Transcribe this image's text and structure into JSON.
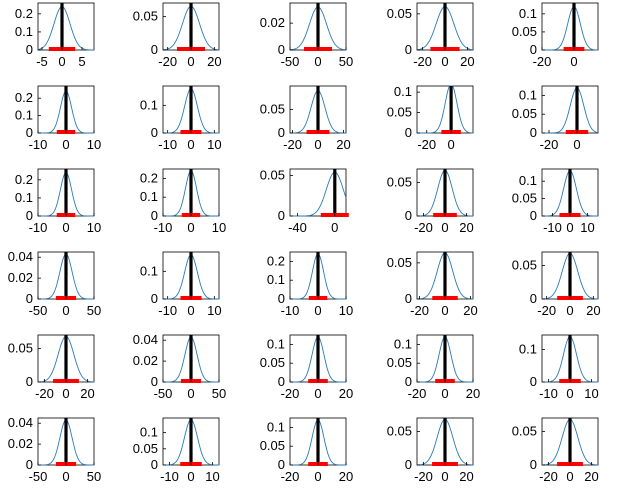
{
  "colors": {
    "curve": "#2a7ab8",
    "bar": "#ff0000",
    "mean_line": "#000000",
    "axes": "#000000"
  },
  "chart_data": [
    {
      "type": "line",
      "series": [
        {
          "values": [
            0.0,
            0.24,
            0.0
          ]
        }
      ],
      "ylim": [
        0,
        0.26
      ],
      "xlim": [
        -6,
        8
      ],
      "yticks": [
        0,
        0.1,
        0.2
      ],
      "ytick_labels": [
        "0",
        "0.1",
        "0.2"
      ],
      "xticks": [
        -5,
        0,
        5
      ],
      "xtick_labels": [
        "-5",
        "0",
        "5"
      ],
      "mean": 0,
      "interval": [
        -3.3,
        3.3
      ]
    },
    {
      "type": "line",
      "series": [
        {
          "values": [
            0.0,
            0.065,
            0.0
          ]
        }
      ],
      "ylim": [
        0,
        0.07
      ],
      "xlim": [
        -24,
        24
      ],
      "yticks": [
        0,
        0.05
      ],
      "ytick_labels": [
        "0",
        "0.05"
      ],
      "xticks": [
        -20,
        0,
        20
      ],
      "xtick_labels": [
        "-20",
        "0",
        "20"
      ],
      "mean": 0,
      "interval": [
        -12,
        12
      ]
    },
    {
      "type": "line",
      "series": [
        {
          "values": [
            0.0,
            0.032,
            0.0
          ]
        }
      ],
      "ylim": [
        0,
        0.035
      ],
      "xlim": [
        -50,
        50
      ],
      "yticks": [
        0,
        0.02
      ],
      "ytick_labels": [
        "0",
        "0.02"
      ],
      "xticks": [
        -50,
        0,
        50
      ],
      "xtick_labels": [
        "-50",
        "0",
        "50"
      ],
      "mean": 0,
      "interval": [
        -25,
        25
      ]
    },
    {
      "type": "line",
      "series": [
        {
          "values": [
            0.0,
            0.06,
            0.0
          ]
        }
      ],
      "ylim": [
        0,
        0.065
      ],
      "xlim": [
        -25,
        25
      ],
      "yticks": [
        0,
        0.05
      ],
      "ytick_labels": [
        "0",
        "0.05"
      ],
      "xticks": [
        -20,
        0,
        20
      ],
      "xtick_labels": [
        "-20",
        "0",
        "20"
      ],
      "mean": 0,
      "interval": [
        -13,
        13
      ]
    },
    {
      "type": "line",
      "series": [
        {
          "values": [
            0.0,
            0.12,
            0.0
          ]
        }
      ],
      "ylim": [
        0,
        0.13
      ],
      "xlim": [
        -20,
        15
      ],
      "yticks": [
        0,
        0.05,
        0.1
      ],
      "ytick_labels": [
        "0",
        "0.05",
        "0.1"
      ],
      "xticks": [
        -20,
        0
      ],
      "xtick_labels": [
        "-20",
        "0"
      ],
      "mean": 0,
      "interval": [
        -6.5,
        6.5
      ]
    },
    {
      "type": "line",
      "series": [
        {
          "values": [
            0.0,
            0.24,
            0.0
          ]
        }
      ],
      "ylim": [
        0,
        0.27
      ],
      "xlim": [
        -10,
        10
      ],
      "yticks": [
        0,
        0.1,
        0.2
      ],
      "ytick_labels": [
        "0",
        "0.1",
        "0.2"
      ],
      "xticks": [
        -10,
        0,
        10
      ],
      "xtick_labels": [
        "-10",
        "0",
        "10"
      ],
      "mean": 0,
      "interval": [
        -3.3,
        3.3
      ]
    },
    {
      "type": "line",
      "series": [
        {
          "values": [
            0.0,
            0.16,
            0.0
          ]
        }
      ],
      "ylim": [
        0,
        0.17
      ],
      "xlim": [
        -12,
        12
      ],
      "yticks": [
        0,
        0.1
      ],
      "ytick_labels": [
        "0",
        "0.1"
      ],
      "xticks": [
        -10,
        0,
        10
      ],
      "xtick_labels": [
        "-10",
        "0",
        "10"
      ],
      "mean": 0,
      "interval": [
        -4.5,
        4.5
      ]
    },
    {
      "type": "line",
      "series": [
        {
          "values": [
            0.0,
            0.09,
            0.0
          ]
        }
      ],
      "ylim": [
        0,
        0.1
      ],
      "xlim": [
        -22,
        22
      ],
      "yticks": [
        0,
        0.05
      ],
      "ytick_labels": [
        "0",
        "0.05"
      ],
      "xticks": [
        -20,
        0,
        20
      ],
      "xtick_labels": [
        "-20",
        "0",
        "20"
      ],
      "mean": 0,
      "interval": [
        -9,
        9
      ]
    },
    {
      "type": "line",
      "series": [
        {
          "values": [
            0.0,
            0.12,
            0.0
          ]
        }
      ],
      "ylim": [
        0,
        0.115
      ],
      "xlim": [
        -28,
        18
      ],
      "yticks": [
        0,
        0.05,
        0.1
      ],
      "ytick_labels": [
        "0",
        "0.05",
        "0.1"
      ],
      "xticks": [
        -20,
        0
      ],
      "xtick_labels": [
        "-20",
        "0"
      ],
      "mean": 0,
      "interval": [
        -8,
        8
      ]
    },
    {
      "type": "line",
      "series": [
        {
          "values": [
            0.0,
            0.12,
            0.0
          ]
        }
      ],
      "ylim": [
        0,
        0.125
      ],
      "xlim": [
        -25,
        15
      ],
      "yticks": [
        0,
        0.05,
        0.1
      ],
      "ytick_labels": [
        "0",
        "0.05",
        "0.1"
      ],
      "xticks": [
        -20,
        0
      ],
      "xtick_labels": [
        "-20",
        "0"
      ],
      "mean": 0,
      "interval": [
        -8,
        8
      ]
    },
    {
      "type": "line",
      "series": [
        {
          "values": [
            0.0,
            0.24,
            0.0
          ]
        }
      ],
      "ylim": [
        0,
        0.26
      ],
      "xlim": [
        -10,
        10
      ],
      "yticks": [
        0,
        0.1,
        0.2
      ],
      "ytick_labels": [
        "0",
        "0.1",
        "0.2"
      ],
      "xticks": [
        -10,
        0,
        10
      ],
      "xtick_labels": [
        "-10",
        "0",
        "10"
      ],
      "mean": 0,
      "interval": [
        -3.3,
        3.3
      ]
    },
    {
      "type": "line",
      "series": [
        {
          "values": [
            0.0,
            0.24,
            0.0
          ]
        }
      ],
      "ylim": [
        0,
        0.25
      ],
      "xlim": [
        -10,
        10
      ],
      "yticks": [
        0,
        0.1,
        0.2
      ],
      "ytick_labels": [
        "0",
        "0.1",
        "0.2"
      ],
      "xticks": [
        -10,
        0,
        10
      ],
      "xtick_labels": [
        "-10",
        "0",
        "10"
      ],
      "mean": 0,
      "interval": [
        -3.3,
        3.3
      ]
    },
    {
      "type": "line",
      "series": [
        {
          "values": [
            0.0,
            0.054,
            0.0
          ]
        }
      ],
      "ylim": [
        0,
        0.058
      ],
      "xlim": [
        -48,
        12
      ],
      "yticks": [
        0,
        0.05
      ],
      "ytick_labels": [
        "0",
        "0.05"
      ],
      "xticks": [
        -40,
        0
      ],
      "xtick_labels": [
        "-40",
        "0"
      ],
      "mean": 0,
      "interval": [
        -15,
        15
      ]
    },
    {
      "type": "line",
      "series": [
        {
          "values": [
            0.0,
            0.068,
            0.0
          ]
        }
      ],
      "ylim": [
        0,
        0.07
      ],
      "xlim": [
        -26,
        26
      ],
      "yticks": [
        0,
        0.05
      ],
      "ytick_labels": [
        "0",
        "0.05"
      ],
      "xticks": [
        -20,
        0,
        20
      ],
      "xtick_labels": [
        "-20",
        "0",
        "20"
      ],
      "mean": 0,
      "interval": [
        -11,
        11
      ]
    },
    {
      "type": "line",
      "series": [
        {
          "values": [
            0.0,
            0.13,
            0.0
          ]
        }
      ],
      "ylim": [
        0,
        0.135
      ],
      "xlim": [
        -16,
        16
      ],
      "yticks": [
        0,
        0.05,
        0.1
      ],
      "ytick_labels": [
        "0",
        "0.05",
        "0.1"
      ],
      "xticks": [
        -10,
        0,
        10
      ],
      "xtick_labels": [
        "-10",
        "0",
        "10"
      ],
      "mean": 0,
      "interval": [
        -6,
        6
      ]
    },
    {
      "type": "line",
      "series": [
        {
          "values": [
            0.0,
            0.043,
            0.0
          ]
        }
      ],
      "ylim": [
        0,
        0.045
      ],
      "xlim": [
        -50,
        50
      ],
      "yticks": [
        0,
        0.02,
        0.04
      ],
      "ytick_labels": [
        "0",
        "0.02",
        "0.04"
      ],
      "xticks": [
        -50,
        0,
        50
      ],
      "xtick_labels": [
        "-50",
        "0",
        "50"
      ],
      "mean": 0,
      "interval": [
        -18,
        18
      ]
    },
    {
      "type": "line",
      "series": [
        {
          "values": [
            0.0,
            0.16,
            0.0
          ]
        }
      ],
      "ylim": [
        0,
        0.17
      ],
      "xlim": [
        -12,
        12
      ],
      "yticks": [
        0,
        0.1
      ],
      "ytick_labels": [
        "0",
        "0.1"
      ],
      "xticks": [
        -10,
        0,
        10
      ],
      "xtick_labels": [
        "-10",
        "0",
        "10"
      ],
      "mean": 0,
      "interval": [
        -4.5,
        4.5
      ]
    },
    {
      "type": "line",
      "series": [
        {
          "values": [
            0.0,
            0.24,
            0.0
          ]
        }
      ],
      "ylim": [
        0,
        0.25
      ],
      "xlim": [
        -10,
        10
      ],
      "yticks": [
        0,
        0.1,
        0.2
      ],
      "ytick_labels": [
        "0",
        "0.1",
        "0.2"
      ],
      "xticks": [
        -10,
        0,
        10
      ],
      "xtick_labels": [
        "-10",
        "0",
        "10"
      ],
      "mean": 0,
      "interval": [
        -3.3,
        3.3
      ]
    },
    {
      "type": "line",
      "series": [
        {
          "values": [
            0.0,
            0.064,
            0.0
          ]
        }
      ],
      "ylim": [
        0,
        0.065
      ],
      "xlim": [
        -22,
        22
      ],
      "yticks": [
        0,
        0.05
      ],
      "ytick_labels": [
        "0",
        "0.05"
      ],
      "xticks": [
        -20,
        0,
        20
      ],
      "xtick_labels": [
        "-20",
        "0",
        "20"
      ],
      "mean": 0,
      "interval": [
        -10,
        10
      ]
    },
    {
      "type": "line",
      "series": [
        {
          "values": [
            0.0,
            0.068,
            0.0
          ]
        }
      ],
      "ylim": [
        0,
        0.07
      ],
      "xlim": [
        -24,
        24
      ],
      "yticks": [
        0,
        0.05
      ],
      "ytick_labels": [
        "0",
        "0.05"
      ],
      "xticks": [
        -20,
        0,
        20
      ],
      "xtick_labels": [
        "-20",
        "0",
        "20"
      ],
      "mean": 0,
      "interval": [
        -11,
        11
      ]
    },
    {
      "type": "line",
      "series": [
        {
          "values": [
            0.0,
            0.068,
            0.0
          ]
        }
      ],
      "ylim": [
        0,
        0.07
      ],
      "xlim": [
        -26,
        26
      ],
      "yticks": [
        0,
        0.05
      ],
      "ytick_labels": [
        "0",
        "0.05"
      ],
      "xticks": [
        -20,
        0,
        20
      ],
      "xtick_labels": [
        "-20",
        "0",
        "20"
      ],
      "mean": 0,
      "interval": [
        -12,
        12
      ]
    },
    {
      "type": "line",
      "series": [
        {
          "values": [
            0.0,
            0.043,
            0.0
          ]
        }
      ],
      "ylim": [
        0,
        0.045
      ],
      "xlim": [
        -50,
        50
      ],
      "yticks": [
        0,
        0.02,
        0.04
      ],
      "ytick_labels": [
        "0",
        "0.02",
        "0.04"
      ],
      "xticks": [
        -50,
        0,
        50
      ],
      "xtick_labels": [
        "-50",
        "0",
        "50"
      ],
      "mean": 0,
      "interval": [
        -18,
        18
      ]
    },
    {
      "type": "line",
      "series": [
        {
          "values": [
            0.0,
            0.12,
            0.0
          ]
        }
      ],
      "ylim": [
        0,
        0.125
      ],
      "xlim": [
        -20,
        20
      ],
      "yticks": [
        0,
        0.05,
        0.1
      ],
      "ytick_labels": [
        "0",
        "0.05",
        "0.1"
      ],
      "xticks": [
        -20,
        0,
        20
      ],
      "xtick_labels": [
        "-20",
        "0",
        "20"
      ],
      "mean": 0,
      "interval": [
        -7,
        7
      ]
    },
    {
      "type": "line",
      "series": [
        {
          "values": [
            0.0,
            0.12,
            0.0
          ]
        }
      ],
      "ylim": [
        0,
        0.125
      ],
      "xlim": [
        -20,
        20
      ],
      "yticks": [
        0,
        0.05,
        0.1
      ],
      "ytick_labels": [
        "0",
        "0.05",
        "0.1"
      ],
      "xticks": [
        -20,
        0,
        20
      ],
      "xtick_labels": [
        "-20",
        "0",
        "20"
      ],
      "mean": 0,
      "interval": [
        -7,
        7
      ]
    },
    {
      "type": "line",
      "series": [
        {
          "values": [
            0.0,
            0.14,
            0.0
          ]
        }
      ],
      "ylim": [
        0,
        0.145
      ],
      "xlim": [
        -13,
        13
      ],
      "yticks": [
        0,
        0.1
      ],
      "ytick_labels": [
        "0",
        "0.1"
      ],
      "xticks": [
        -10,
        0,
        10
      ],
      "xtick_labels": [
        "-10",
        "0",
        "10"
      ],
      "mean": 0,
      "interval": [
        -5,
        5
      ]
    },
    {
      "type": "line",
      "series": [
        {
          "values": [
            0.0,
            0.043,
            0.0
          ]
        }
      ],
      "ylim": [
        0,
        0.045
      ],
      "xlim": [
        -50,
        50
      ],
      "yticks": [
        0,
        0.02,
        0.04
      ],
      "ytick_labels": [
        "0",
        "0.02",
        "0.04"
      ],
      "xticks": [
        -50,
        0,
        50
      ],
      "xtick_labels": [
        "-50",
        "0",
        "50"
      ],
      "mean": 0,
      "interval": [
        -18,
        18
      ]
    },
    {
      "type": "line",
      "series": [
        {
          "values": [
            0.0,
            0.14,
            0.0
          ]
        }
      ],
      "ylim": [
        0,
        0.145
      ],
      "xlim": [
        -13,
        13
      ],
      "yticks": [
        0,
        0.05,
        0.1
      ],
      "ytick_labels": [
        "0",
        "0.05",
        "0.1"
      ],
      "xticks": [
        -10,
        0,
        10
      ],
      "xtick_labels": [
        "-10",
        "0",
        "10"
      ],
      "mean": 0,
      "interval": [
        -5,
        5
      ]
    },
    {
      "type": "line",
      "series": [
        {
          "values": [
            0.0,
            0.12,
            0.0
          ]
        }
      ],
      "ylim": [
        0,
        0.125
      ],
      "xlim": [
        -20,
        20
      ],
      "yticks": [
        0,
        0.05,
        0.1
      ],
      "ytick_labels": [
        "0",
        "0.05",
        "0.1"
      ],
      "xticks": [
        -20,
        0,
        20
      ],
      "xtick_labels": [
        "-20",
        "0",
        "20"
      ],
      "mean": 0,
      "interval": [
        -7,
        7
      ]
    },
    {
      "type": "line",
      "series": [
        {
          "values": [
            0.0,
            0.068,
            0.0
          ]
        }
      ],
      "ylim": [
        0,
        0.07
      ],
      "xlim": [
        -26,
        26
      ],
      "yticks": [
        0,
        0.05
      ],
      "ytick_labels": [
        "0",
        "0.05"
      ],
      "xticks": [
        -20,
        0,
        20
      ],
      "xtick_labels": [
        "-20",
        "0",
        "20"
      ],
      "mean": 0,
      "interval": [
        -12,
        12
      ]
    },
    {
      "type": "line",
      "series": [
        {
          "values": [
            0.0,
            0.068,
            0.0
          ]
        }
      ],
      "ylim": [
        0,
        0.07
      ],
      "xlim": [
        -26,
        26
      ],
      "yticks": [
        0,
        0.05
      ],
      "ytick_labels": [
        "0",
        "0.05"
      ],
      "xticks": [
        -20,
        0,
        20
      ],
      "xtick_labels": [
        "-20",
        "0",
        "20"
      ],
      "mean": 0,
      "interval": [
        -12,
        12
      ]
    }
  ]
}
